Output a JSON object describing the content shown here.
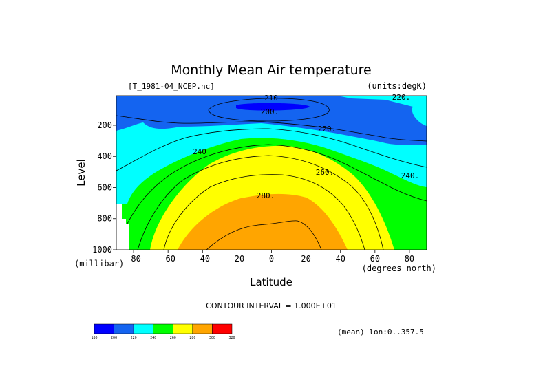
{
  "chart_data": {
    "type": "contour",
    "title": "Monthly Mean Air temperature",
    "file_label": "[T_1981-04_NCEP.nc]",
    "units_label": "(units:degK)",
    "xlabel": "Latitude",
    "ylabel": "Level",
    "x_unit": "(degrees_north)",
    "y_unit": "(millibar)",
    "xlim": [
      -90,
      90
    ],
    "ylim": [
      1000,
      10
    ],
    "y_axis_inverted": true,
    "x_ticks": [
      "-80",
      "-60",
      "-40",
      "-20",
      "0",
      "20",
      "40",
      "60",
      "80"
    ],
    "x_tick_values": [
      -80,
      -60,
      -40,
      -20,
      0,
      20,
      40,
      60,
      80
    ],
    "y_ticks": [
      "200",
      "400",
      "600",
      "800",
      "1000"
    ],
    "y_tick_values": [
      200,
      400,
      600,
      800,
      1000
    ],
    "contour_interval_text": "CONTOUR INTERVAL = 1.000E+01",
    "contour_labels": [
      "210",
      "200.",
      "220.",
      "220.",
      "240",
      "240.",
      "260.",
      "280."
    ],
    "footnote": "(mean) lon:0..357.5",
    "colorbar": {
      "levels": [
        "180",
        "200",
        "220",
        "240",
        "260",
        "280",
        "300",
        "320"
      ],
      "colors": [
        "#0000ff",
        "#1464f0",
        "#00ffff",
        "#00ff00",
        "#ffff00",
        "#ffa500",
        "#ff0000"
      ]
    },
    "level_fill_colors": {
      "lt200": "#0000ff",
      "200_220": "#1464f0",
      "220_240": "#00ffff",
      "240_260": "#00ff00",
      "260_280": "#ffff00",
      "280_300": "#ffa500"
    }
  }
}
